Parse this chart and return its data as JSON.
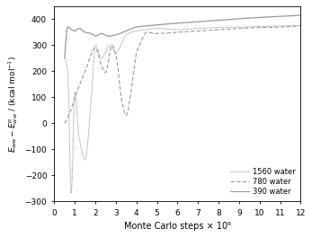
{
  "xlabel": "Monte Carlo steps × 10⁶",
  "xlim": [
    0,
    12
  ],
  "ylim": [
    -300,
    450
  ],
  "yticks": [
    -300,
    -200,
    -100,
    0,
    100,
    200,
    300,
    400
  ],
  "xticks": [
    0,
    1,
    2,
    3,
    4,
    5,
    6,
    7,
    8,
    9,
    10,
    11,
    12
  ],
  "legend_labels": [
    "1560 water",
    "780 water",
    "390 water"
  ],
  "line_color": "#999999",
  "background_color": "#ffffff"
}
